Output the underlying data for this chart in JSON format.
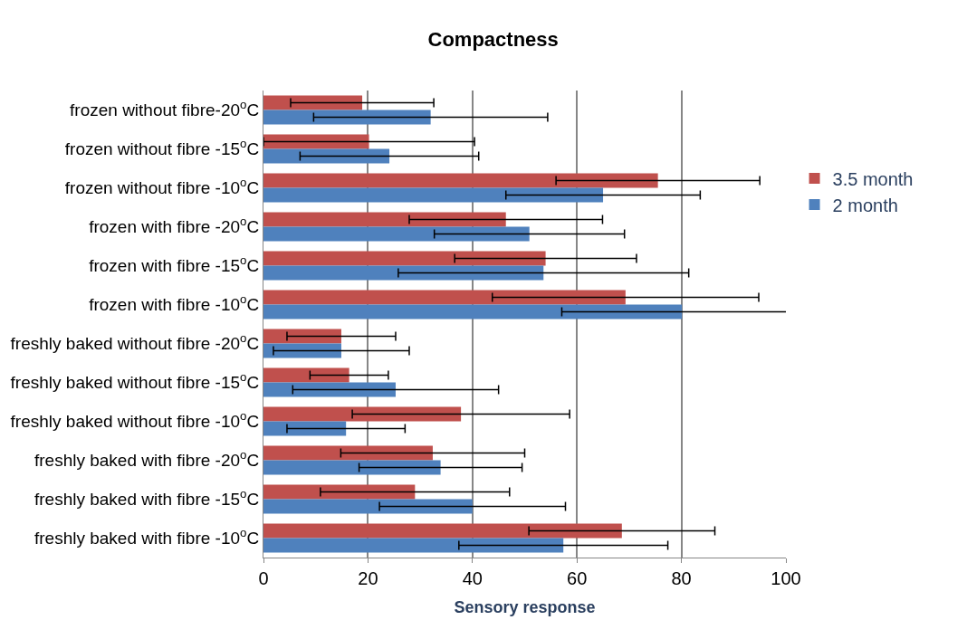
{
  "chart_data": {
    "type": "bar",
    "orientation": "horizontal",
    "title": "Compactness",
    "xlabel": "Sensory response",
    "categories": [
      "frozen without fibre-20$^{o}$C",
      "frozen without fibre -15$^{o}$C",
      "frozen without fibre -10$^{o}$C",
      "frozen with fibre -20$^{o}$C",
      "frozen with fibre -15$^{o}$C",
      "frozen with fibre -10$^{o}$C",
      "freshly baked without fibre -20$^{o}$C",
      "freshly baked without fibre -15$^{o}$C",
      "freshly baked without fibre -10$^{o}$C",
      "freshly baked with fibre -20$^{o}$C",
      "freshly baked with fibre -15$^{o}$C",
      "freshly baked with fibre -10$^{o}$C"
    ],
    "series": [
      {
        "name": "3.5 month",
        "color": "#c0504d",
        "values": [
          18.9,
          20.2,
          75.5,
          46.4,
          54.0,
          69.3,
          14.9,
          16.4,
          37.8,
          32.4,
          29.0,
          68.6
        ],
        "errors": [
          13.7,
          20.2,
          19.5,
          18.5,
          17.4,
          25.5,
          10.4,
          7.5,
          20.8,
          17.6,
          18.1,
          17.8
        ]
      },
      {
        "name": "2 month",
        "color": "#4f81bd",
        "values": [
          32.0,
          24.1,
          65.0,
          50.9,
          53.6,
          80.1,
          14.9,
          25.3,
          15.8,
          33.9,
          40.0,
          57.4
        ],
        "errors": [
          22.4,
          17.1,
          18.6,
          18.2,
          27.8,
          23.0,
          13.0,
          19.7,
          11.3,
          15.6,
          17.8,
          20.0
        ]
      }
    ],
    "xlim": [
      0,
      100
    ],
    "xticks": [
      0,
      20,
      40,
      60,
      80,
      100
    ],
    "grid": "x",
    "legend": "right"
  }
}
